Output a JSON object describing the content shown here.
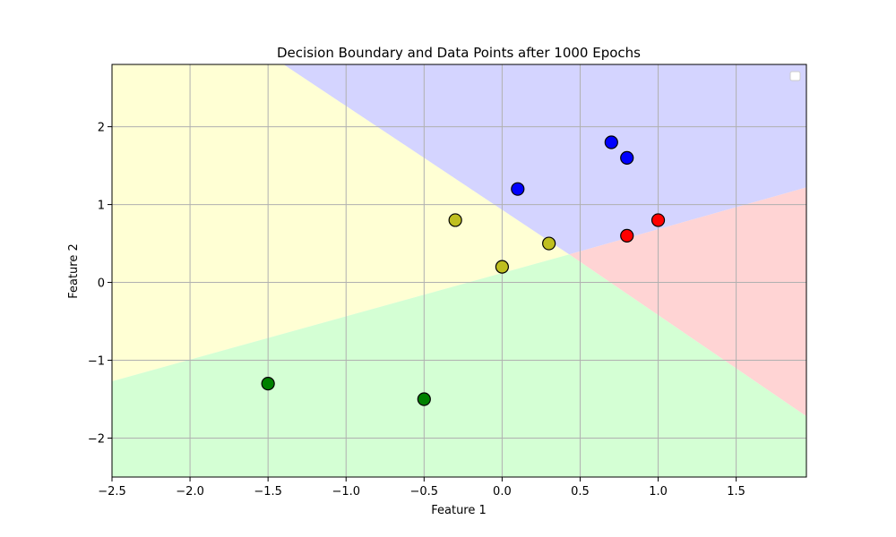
{
  "chart_data": {
    "type": "scatter",
    "title": "Decision Boundary and Data Points after 1000 Epochs",
    "xlabel": "Feature 1",
    "ylabel": "Feature 2",
    "xlim": [
      -2.5,
      1.95
    ],
    "ylim": [
      -2.5,
      2.8
    ],
    "xticks": [
      -2.5,
      -2.0,
      -1.5,
      -1.0,
      -0.5,
      0.0,
      0.5,
      1.0,
      1.5
    ],
    "xtick_labels": [
      "−2.5",
      "−2.0",
      "−1.5",
      "−1.0",
      "−0.5",
      "0.0",
      "0.5",
      "1.0",
      "1.5"
    ],
    "yticks": [
      -2,
      -1,
      0,
      1,
      2
    ],
    "ytick_labels": [
      "−2",
      "−1",
      "0",
      "1",
      "2"
    ],
    "grid": true,
    "legend": "top-right",
    "regions": [
      {
        "color": "#ffffd4",
        "polygon": [
          [
            -2.5,
            2.8
          ],
          [
            -1.4,
            2.8
          ],
          [
            0.43,
            0.36
          ],
          [
            -2.5,
            -1.27
          ]
        ]
      },
      {
        "color": "#d4d4ff",
        "polygon": [
          [
            -1.4,
            2.8
          ],
          [
            1.95,
            2.8
          ],
          [
            1.95,
            1.22
          ],
          [
            0.43,
            0.36
          ]
        ]
      },
      {
        "color": "#ffd4d4",
        "polygon": [
          [
            0.43,
            0.36
          ],
          [
            1.95,
            1.22
          ],
          [
            1.95,
            -1.72
          ]
        ]
      },
      {
        "color": "#d4ffd4",
        "polygon": [
          [
            -2.5,
            -1.27
          ],
          [
            0.43,
            0.36
          ],
          [
            1.95,
            -1.72
          ],
          [
            1.95,
            -2.5
          ],
          [
            -2.5,
            -2.5
          ]
        ]
      }
    ],
    "series": [
      {
        "color": "#0000ff",
        "points": [
          [
            0.1,
            1.2
          ],
          [
            0.7,
            1.8
          ],
          [
            0.8,
            1.6
          ]
        ]
      },
      {
        "color": "#ff0000",
        "points": [
          [
            0.8,
            0.6
          ],
          [
            1.0,
            0.8
          ]
        ]
      },
      {
        "color": "#bfbf1f",
        "points": [
          [
            -0.3,
            0.8
          ],
          [
            0.0,
            0.2
          ],
          [
            0.3,
            0.5
          ]
        ]
      },
      {
        "color": "#008000",
        "points": [
          [
            -1.5,
            -1.3
          ],
          [
            -0.5,
            -1.5
          ]
        ]
      }
    ]
  }
}
